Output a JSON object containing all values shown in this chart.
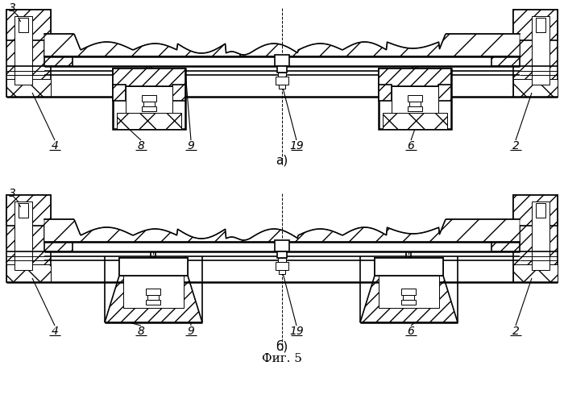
{
  "bg_color": "#ffffff",
  "lw_main": 1.2,
  "lw_thin": 0.7,
  "lw_thick": 1.8,
  "fig_title": "Фиг. 5",
  "label_a": "а)",
  "label_b": "б)",
  "label_3": "3",
  "labels_a": [
    [
      "4",
      68
    ],
    [
      "8",
      175
    ],
    [
      "9",
      237
    ],
    [
      "19",
      368
    ],
    [
      "6",
      510
    ],
    [
      "2",
      640
    ]
  ],
  "labels_b": [
    [
      "4",
      68
    ],
    [
      "8",
      175
    ],
    [
      "9",
      237
    ],
    [
      "19",
      368
    ],
    [
      "6",
      510
    ],
    [
      "2",
      640
    ]
  ]
}
